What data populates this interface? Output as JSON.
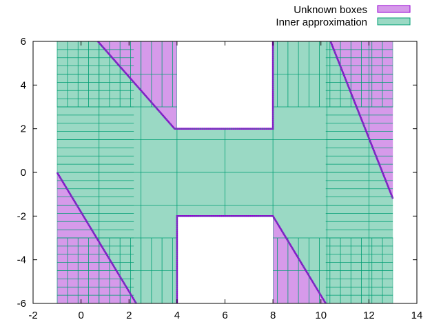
{
  "chart_data": {
    "type": "area",
    "title": "",
    "xlabel": "",
    "ylabel": "",
    "xlim": [
      -2,
      14
    ],
    "ylim": [
      -6,
      6
    ],
    "xticks": [
      -2,
      0,
      2,
      4,
      6,
      8,
      10,
      12,
      14
    ],
    "yticks": [
      -6,
      -4,
      -2,
      0,
      2,
      4,
      6
    ],
    "grid": false,
    "legend_position": "top-right",
    "series": [
      {
        "name": "Unknown boxes",
        "color": "#d69aea",
        "edge_color": "#9400d3",
        "regions": [
          {
            "polygon": [
              [
                0.7,
                6
              ],
              [
                4,
                6
              ],
              [
                4,
                2
              ],
              [
                3.9,
                2
              ]
            ]
          },
          {
            "polygon": [
              [
                10.4,
                6
              ],
              [
                13,
                6
              ],
              [
                13,
                -1.2
              ]
            ]
          },
          {
            "polygon": [
              [
                -1,
                0
              ],
              [
                -1,
                -6
              ],
              [
                2.3,
                -6
              ]
            ]
          },
          {
            "polygon": [
              [
                8,
                -2
              ],
              [
                8,
                -6
              ],
              [
                10.2,
                -6
              ]
            ]
          }
        ],
        "boundaries": [
          {
            "points": [
              [
                0.7,
                6
              ],
              [
                3.9,
                2
              ],
              [
                8,
                2
              ],
              [
                8,
                6
              ]
            ]
          },
          {
            "points": [
              [
                10.4,
                6
              ],
              [
                13,
                -1.2
              ]
            ]
          },
          {
            "points": [
              [
                -1,
                0
              ],
              [
                2.3,
                -6
              ]
            ]
          },
          {
            "points": [
              [
                4,
                -6
              ],
              [
                4,
                -2
              ],
              [
                8,
                -2
              ],
              [
                10.2,
                -6
              ]
            ]
          }
        ]
      },
      {
        "name": "Inner approximation",
        "color": "#9ad9c4",
        "edge_color": "#009e73",
        "regions": [
          {
            "polygon": [
              [
                -1,
                6
              ],
              [
                0.7,
                6
              ],
              [
                3.9,
                2
              ],
              [
                8,
                2
              ],
              [
                8,
                6
              ],
              [
                10.4,
                6
              ],
              [
                13,
                -1.2
              ],
              [
                13,
                -6
              ],
              [
                10.2,
                -6
              ],
              [
                8,
                -2
              ],
              [
                4,
                -2
              ],
              [
                4,
                -6
              ],
              [
                2.3,
                -6
              ],
              [
                -1,
                0
              ]
            ]
          }
        ]
      }
    ]
  }
}
